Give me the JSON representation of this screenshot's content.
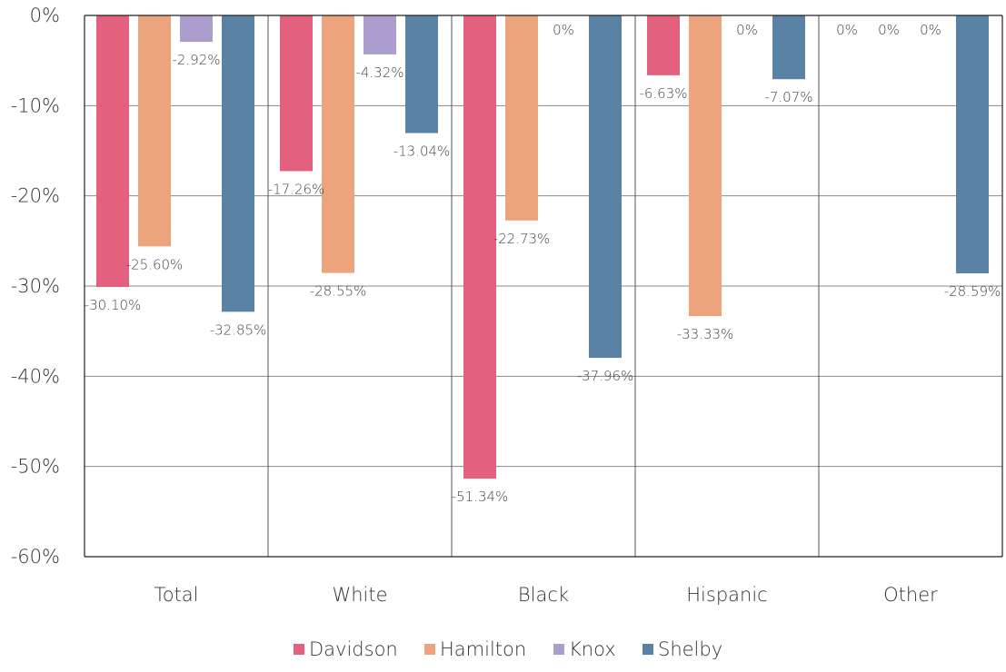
{
  "chart_data": {
    "type": "bar",
    "categories": [
      "Total",
      "White",
      "Black",
      "Hispanic",
      "Other"
    ],
    "series": [
      {
        "name": "Davidson",
        "color": "#e3607f",
        "values": [
          -30.1,
          -17.26,
          -51.34,
          -6.63,
          0
        ],
        "labels": [
          "-30.10%",
          "-17.26%",
          "-51.34%",
          "-6.63%",
          "0%"
        ]
      },
      {
        "name": "Hamilton",
        "color": "#eba47c",
        "values": [
          -25.6,
          -28.55,
          -22.73,
          -33.33,
          0
        ],
        "labels": [
          "-25.60%",
          "-28.55%",
          "-22.73%",
          "-33.33%",
          "0%"
        ]
      },
      {
        "name": "Knox",
        "color": "#ab9ecf",
        "values": [
          -2.92,
          -4.32,
          0,
          0,
          0
        ],
        "labels": [
          "-2.92%",
          "-4.32%",
          "0%",
          "0%",
          "0%"
        ]
      },
      {
        "name": "Shelby",
        "color": "#5a82a5",
        "values": [
          -32.85,
          -13.04,
          -37.96,
          -7.07,
          -28.59
        ],
        "labels": [
          "-32.85%",
          "-13.04%",
          "-37.96%",
          "-7.07%",
          "-28.59%"
        ]
      }
    ],
    "y_ticks": [
      0,
      -10,
      -20,
      -30,
      -40,
      -50,
      -60
    ],
    "y_tick_labels": [
      "0%",
      "-10%",
      "-20%",
      "-30%",
      "-40%",
      "-50%",
      "-60%"
    ],
    "ylim": [
      -60,
      0
    ],
    "grid": true,
    "legend_position": "bottom",
    "title": "",
    "xlabel": "",
    "ylabel": ""
  }
}
